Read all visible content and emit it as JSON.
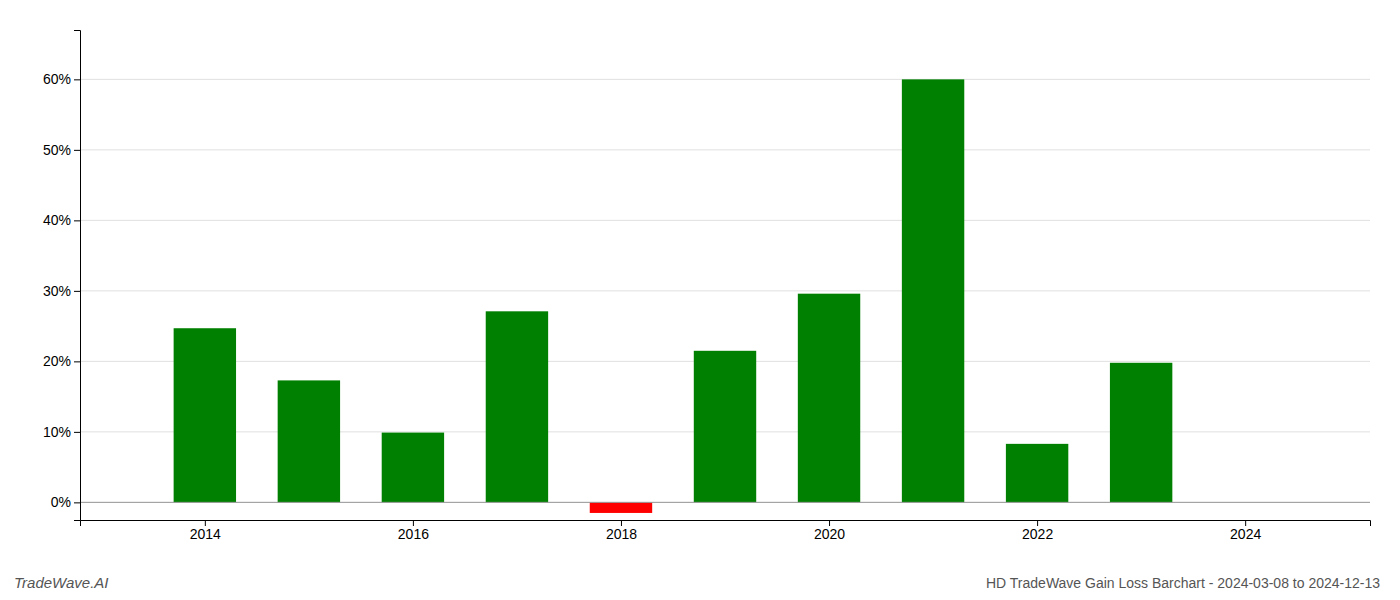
{
  "chart_data": {
    "type": "bar",
    "title": "HD TradeWave Gain Loss Barchart - 2024-03-08 to 2024-12-13",
    "annotations": [
      "TradeWave.AI"
    ],
    "x": [
      2014,
      2015,
      2016,
      2017,
      2018,
      2019,
      2020,
      2021,
      2022,
      2023,
      2024
    ],
    "values": [
      0.247,
      0.173,
      0.099,
      0.271,
      -0.015,
      0.215,
      0.296,
      0.6,
      0.083,
      0.198,
      null
    ],
    "colors": [
      "#008000",
      "#008000",
      "#008000",
      "#008000",
      "#ff0000",
      "#008000",
      "#008000",
      "#008000",
      "#008000",
      "#008000",
      "#008000"
    ],
    "xlim": [
      2012.8,
      2025.2
    ],
    "xticks": [
      2014,
      2016,
      2018,
      2020,
      2022,
      2024
    ],
    "ylim": [
      -0.025,
      0.67
    ],
    "yticks": [
      {
        "value": 0.0,
        "label": "0%"
      },
      {
        "value": 0.1,
        "label": "10%"
      },
      {
        "value": 0.2,
        "label": "20%"
      },
      {
        "value": 0.3,
        "label": "30%"
      },
      {
        "value": 0.4,
        "label": "40%"
      },
      {
        "value": 0.5,
        "label": "50%"
      },
      {
        "value": 0.6,
        "label": "60%"
      }
    ],
    "grid": true
  }
}
